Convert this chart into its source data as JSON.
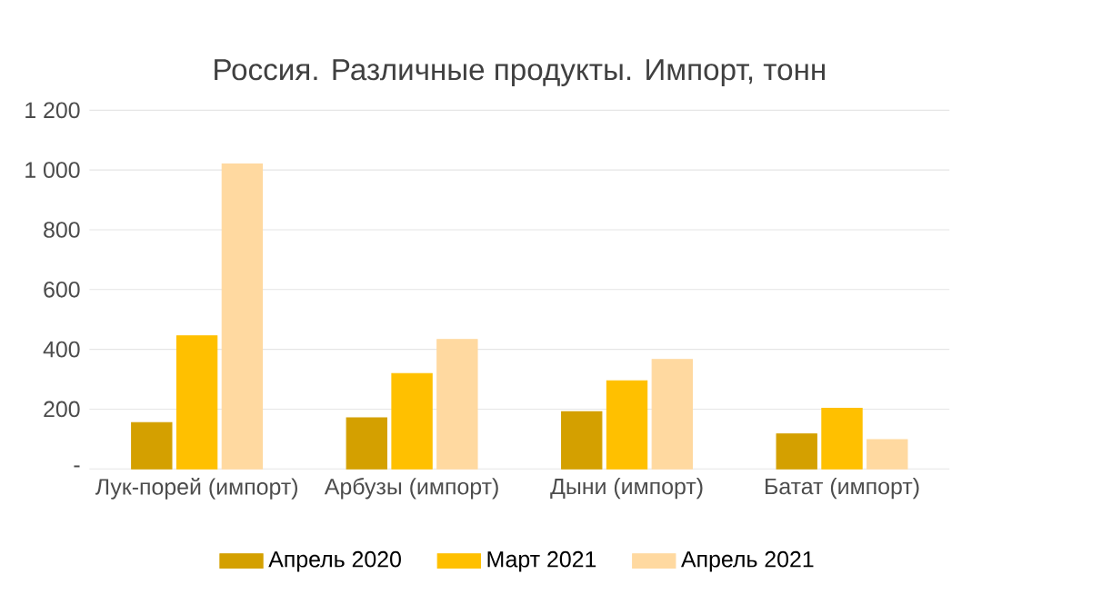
{
  "chart_data": {
    "type": "bar",
    "title": "Россия. Различные продукты. Импорт, тонн",
    "categories": [
      "Лук-порей (импорт)",
      "Арбузы (импорт)",
      "Дыни (импорт)",
      "Батат (импорт)"
    ],
    "series": [
      {
        "name": "Апрель 2020",
        "color": "#d4a000",
        "values": [
          155,
          171,
          191,
          117
        ]
      },
      {
        "name": "Март 2021",
        "color": "#ffc000",
        "values": [
          445,
          319,
          295,
          203
        ]
      },
      {
        "name": "Апрель 2021",
        "color": "#ffd9a0",
        "values": [
          1020,
          433,
          366,
          98
        ]
      }
    ],
    "ylim": [
      0,
      1200
    ],
    "yticks": [
      {
        "value": 0,
        "label": "-"
      },
      200,
      400,
      600,
      800,
      {
        "value": 1000,
        "label": "1 000"
      },
      {
        "value": 1200,
        "label": "1 200"
      }
    ],
    "grid": "y",
    "legend": "bottom"
  }
}
